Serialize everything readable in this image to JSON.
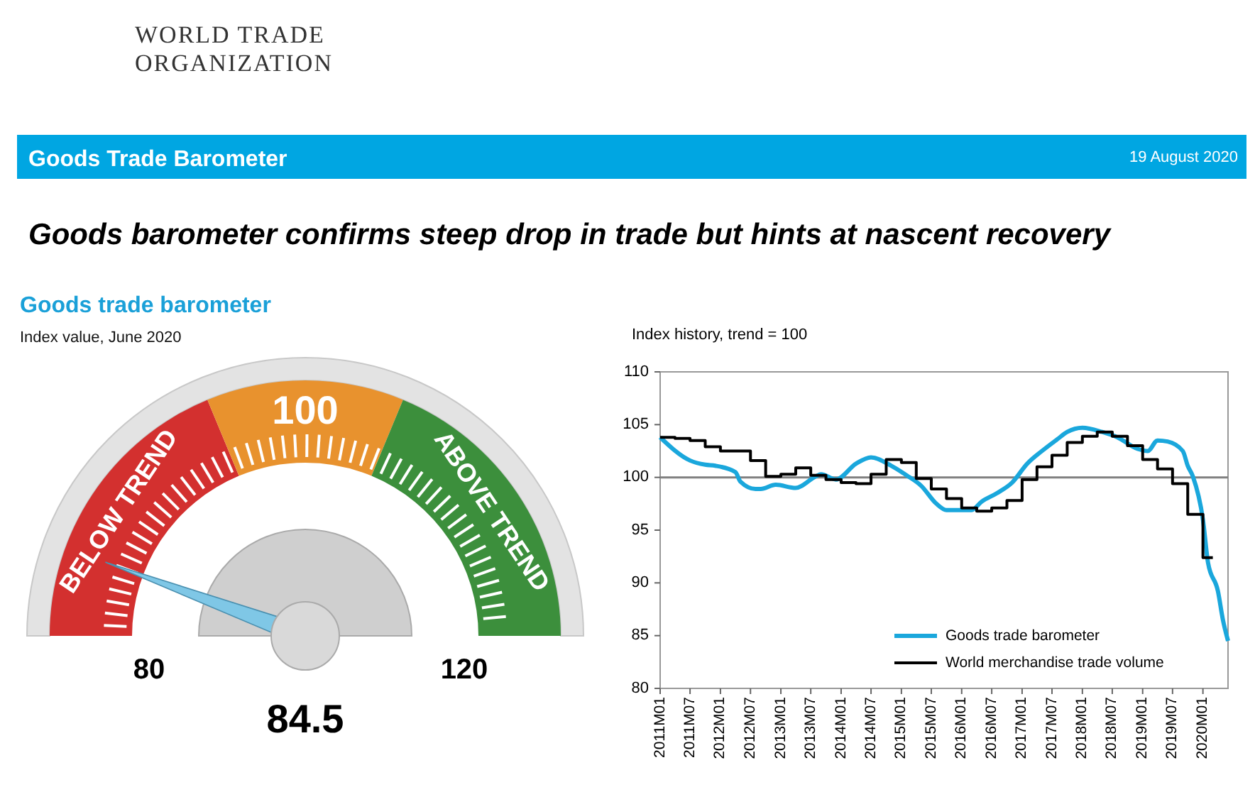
{
  "chart_data": [
    {
      "type": "other",
      "title": "Goods Trade Barometer",
      "subtitle": "Goods barometer confirms steep drop in trade but hints at nascent recovery",
      "annotations": [
        "WORLD TRADE ORGANIZATION",
        "19 August 2020"
      ],
      "color": "#00a6e2"
    },
    {
      "type": "donut",
      "title": "Goods trade barometer",
      "subtitle": "Index value, June 2020",
      "categories": [
        "BELOW TREND",
        "100",
        "ABOVE TREND"
      ],
      "values": [
        37.5,
        25,
        37.5
      ],
      "colors": [
        "#d3302f",
        "#e8922e",
        "#3c8f3c"
      ],
      "needle": "BELOW TREND",
      "annotations": [
        "80",
        "120",
        "84.5"
      ]
    },
    {
      "type": "line",
      "subtitle": "Index history, trend = 100",
      "ylim": [
        80,
        110
      ],
      "yticks": [
        80,
        85,
        90,
        95,
        100,
        105,
        110
      ],
      "xlim": [
        "2011-01",
        "2020-06"
      ],
      "xticks": [
        {
          "value": "2011-01",
          "label": "2011M01"
        },
        {
          "value": "2011-07",
          "label": "2011M07"
        },
        {
          "value": "2012-01",
          "label": "2012M01"
        },
        {
          "value": "2012-07",
          "label": "2012M07"
        },
        {
          "value": "2013-01",
          "label": "2013M01"
        },
        {
          "value": "2013-07",
          "label": "2013M07"
        },
        {
          "value": "2014-01",
          "label": "2014M01"
        },
        {
          "value": "2014-07",
          "label": "2014M07"
        },
        {
          "value": "2015-01",
          "label": "2015M01"
        },
        {
          "value": "2015-07",
          "label": "2015M07"
        },
        {
          "value": "2016-01",
          "label": "2016M01"
        },
        {
          "value": "2016-07",
          "label": "2016M07"
        },
        {
          "value": "2017-01",
          "label": "2017M01"
        },
        {
          "value": "2017-07",
          "label": "2017M07"
        },
        {
          "value": "2018-01",
          "label": "2018M01"
        },
        {
          "value": "2018-07",
          "label": "2018M07"
        },
        {
          "value": "2019-01",
          "label": "2019M01"
        },
        {
          "value": "2019-07",
          "label": "2019M07"
        },
        {
          "value": "2020-01",
          "label": "2020M01"
        }
      ],
      "grid": false,
      "legend": "bottom right",
      "ref_lines": [
        {
          "axis": "y",
          "value": 100,
          "color": "#808080"
        }
      ],
      "series": [
        {
          "name": "Goods trade barometer",
          "type": "line",
          "color": "#1aa7dc",
          "x": [
            "2011-01",
            "2011-07",
            "2011-10",
            "2011-12",
            "2012-04",
            "2012-05",
            "2012-08",
            "2012-09",
            "2012-12",
            "2013-04",
            "2013-08",
            "2013-09",
            "2013-12",
            "2014-04",
            "2014-07",
            "2014-11",
            "2015-02",
            "2015-05",
            "2015-08",
            "2015-10",
            "2016-03",
            "2016-05",
            "2016-08",
            "2016-11",
            "2017-02",
            "2017-05",
            "2017-08",
            "2017-10",
            "2018-01",
            "2018-05",
            "2018-08",
            "2018-12",
            "2019-02",
            "2019-04",
            "2019-06",
            "2019-09",
            "2019-10",
            "2019-11",
            "2020-01",
            "2020-02",
            "2020-04",
            "2020-05",
            "2020-06"
          ],
          "values": [
            103.8,
            101.6,
            101.2,
            101.1,
            100.5,
            99.6,
            98.9,
            98.9,
            99.3,
            99.0,
            100.1,
            100.3,
            99.8,
            101.3,
            101.9,
            101.1,
            100.2,
            99.2,
            97.5,
            96.9,
            96.9,
            97.7,
            98.5,
            99.5,
            101.3,
            102.5,
            103.6,
            104.3,
            104.7,
            104.3,
            103.8,
            102.7,
            102.5,
            103.5,
            103.4,
            102.5,
            101.1,
            100.1,
            96.0,
            91.9,
            89.2,
            86.5,
            84.5
          ]
        },
        {
          "name": "World merchandise trade volume",
          "type": "step",
          "color": "#000000",
          "x": [
            "2011-01",
            "2011-04",
            "2011-07",
            "2011-10",
            "2012-01",
            "2012-04",
            "2012-07",
            "2012-10",
            "2013-01",
            "2013-04",
            "2013-07",
            "2013-10",
            "2014-01",
            "2014-04",
            "2014-07",
            "2014-10",
            "2015-01",
            "2015-04",
            "2015-07",
            "2015-10",
            "2016-01",
            "2016-04",
            "2016-07",
            "2016-10",
            "2017-01",
            "2017-04",
            "2017-07",
            "2017-10",
            "2018-01",
            "2018-04",
            "2018-07",
            "2018-10",
            "2019-01",
            "2019-04",
            "2019-07",
            "2019-10",
            "2020-01",
            "2020-03"
          ],
          "values": [
            103.8,
            103.7,
            103.5,
            102.9,
            102.5,
            102.5,
            101.6,
            100.1,
            100.3,
            100.9,
            100.2,
            99.8,
            99.5,
            99.4,
            100.3,
            101.7,
            101.4,
            99.9,
            98.9,
            98.0,
            97.1,
            96.8,
            97.1,
            97.8,
            99.8,
            101.0,
            102.1,
            103.3,
            103.9,
            104.3,
            103.9,
            103.0,
            101.7,
            100.8,
            99.4,
            96.5,
            92.4,
            92.4
          ]
        }
      ]
    }
  ]
}
